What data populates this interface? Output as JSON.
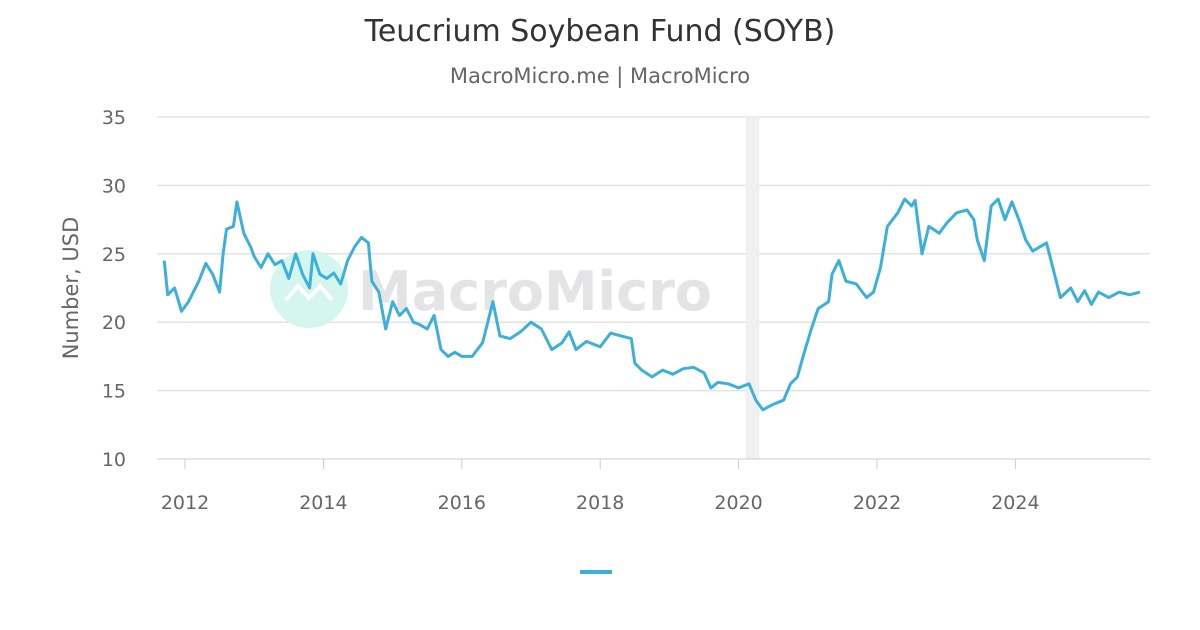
{
  "chart_data": {
    "type": "line",
    "title": "Teucrium Soybean Fund (SOYB)",
    "subtitle": "MacroMicro.me | MacroMicro",
    "xlabel": "",
    "ylabel": "Number, USD",
    "ylim": [
      10,
      35
    ],
    "xlim": [
      2011.6,
      2025.95
    ],
    "yticks": [
      "10",
      "15",
      "20",
      "25",
      "30",
      "35"
    ],
    "xticks": [
      "2012",
      "2014",
      "2016",
      "2018",
      "2020",
      "2022",
      "2024"
    ],
    "grid": true,
    "legend_position": "bottom-center",
    "watermark": "MacroMicro",
    "recession_band": [
      2020.1,
      2020.3
    ],
    "color": "#3cb0da",
    "series": [
      {
        "name": "SOYB",
        "x": [
          2011.7,
          2011.75,
          2011.85,
          2011.95,
          2012.05,
          2012.2,
          2012.3,
          2012.4,
          2012.5,
          2012.55,
          2012.6,
          2012.7,
          2012.75,
          2012.85,
          2012.95,
          2013.0,
          2013.1,
          2013.2,
          2013.3,
          2013.4,
          2013.5,
          2013.6,
          2013.7,
          2013.8,
          2013.85,
          2013.95,
          2014.05,
          2014.15,
          2014.25,
          2014.35,
          2014.45,
          2014.55,
          2014.65,
          2014.7,
          2014.8,
          2014.9,
          2015.0,
          2015.1,
          2015.2,
          2015.3,
          2015.4,
          2015.5,
          2015.6,
          2015.7,
          2015.8,
          2015.9,
          2016.0,
          2016.15,
          2016.3,
          2016.45,
          2016.55,
          2016.7,
          2016.85,
          2017.0,
          2017.15,
          2017.3,
          2017.45,
          2017.55,
          2017.65,
          2017.8,
          2018.0,
          2018.15,
          2018.3,
          2018.45,
          2018.5,
          2018.6,
          2018.75,
          2018.9,
          2019.05,
          2019.2,
          2019.35,
          2019.5,
          2019.6,
          2019.7,
          2019.85,
          2020.0,
          2020.15,
          2020.25,
          2020.35,
          2020.5,
          2020.65,
          2020.75,
          2020.85,
          2020.95,
          2021.05,
          2021.15,
          2021.3,
          2021.35,
          2021.45,
          2021.55,
          2021.7,
          2021.85,
          2021.95,
          2022.05,
          2022.15,
          2022.3,
          2022.4,
          2022.5,
          2022.55,
          2022.65,
          2022.75,
          2022.9,
          2023.0,
          2023.15,
          2023.3,
          2023.4,
          2023.45,
          2023.55,
          2023.65,
          2023.75,
          2023.85,
          2023.95,
          2024.05,
          2024.15,
          2024.25,
          2024.35,
          2024.45,
          2024.55,
          2024.65,
          2024.8,
          2024.9,
          2025.0,
          2025.1,
          2025.2,
          2025.35,
          2025.5,
          2025.65,
          2025.8
        ],
        "values": [
          24.5,
          22,
          22.5,
          20.8,
          21.5,
          23,
          24.3,
          23.5,
          22.2,
          25,
          26.8,
          27,
          28.8,
          26.5,
          25.5,
          24.8,
          24,
          25,
          24.2,
          24.5,
          23.2,
          25,
          23.5,
          22.5,
          25,
          23.5,
          23.2,
          23.6,
          22.8,
          24.5,
          25.5,
          26.2,
          25.8,
          23,
          22.2,
          19.5,
          21.5,
          20.5,
          21,
          20,
          19.8,
          19.5,
          20.5,
          18,
          17.5,
          17.8,
          17.5,
          17.5,
          18.5,
          21.5,
          19,
          18.8,
          19.3,
          20,
          19.5,
          18,
          18.5,
          19.3,
          18,
          18.6,
          18.2,
          19.2,
          19,
          18.8,
          17,
          16.5,
          16,
          16.5,
          16.2,
          16.6,
          16.7,
          16.3,
          15.2,
          15.6,
          15.5,
          15.2,
          15.5,
          14.3,
          13.6,
          14,
          14.3,
          15.5,
          16,
          17.8,
          19.5,
          21,
          21.5,
          23.5,
          24.5,
          23,
          22.8,
          21.8,
          22.2,
          24,
          27,
          28,
          29,
          28.5,
          28.9,
          25,
          27,
          26.5,
          27.2,
          28,
          28.2,
          27.5,
          26,
          24.5,
          28.5,
          29,
          27.5,
          28.8,
          27.5,
          26,
          25.2,
          25.5,
          25.8,
          23.8,
          21.8,
          22.5,
          21.5,
          22.3,
          21.3,
          22.2,
          21.8,
          22.2,
          22,
          22.2
        ]
      }
    ]
  }
}
